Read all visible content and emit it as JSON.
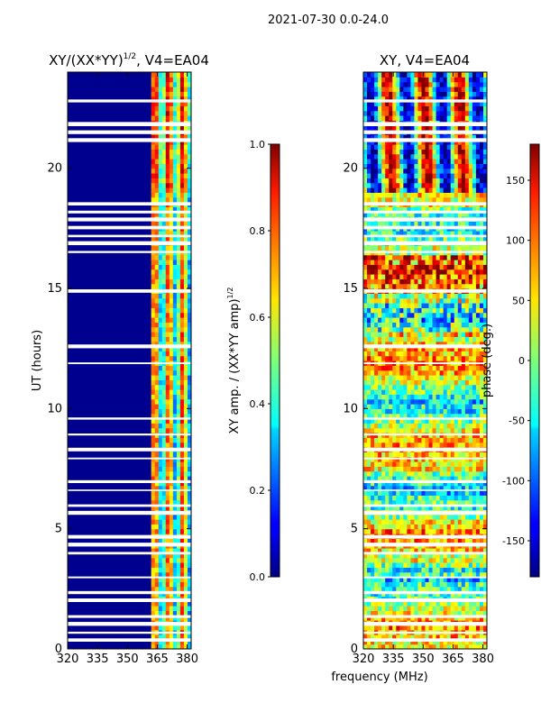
{
  "header": {
    "title": "2021-07-30 0.0-24.0"
  },
  "chart_data": [
    {
      "type": "heatmap",
      "title": "XY/(XX*YY)^1/2, V4=EA04",
      "title_main": "XY/(XX*YY)",
      "title_sup": "1/2",
      "title_tail": ", V4=EA04",
      "xlabel": "frequency (MHz)",
      "ylabel": "UT (hours)",
      "xlim": [
        320,
        382
      ],
      "ylim": [
        0,
        24
      ],
      "xticks": [
        320,
        335,
        350,
        365,
        380
      ],
      "yticks": [
        0,
        5,
        10,
        15,
        20
      ],
      "colorbar": {
        "label": "XY amp. / (XX*YY amp)^1/2",
        "label_main": "XY amp. / (XX*YY amp)",
        "label_sup": "1/2",
        "range": [
          0.0,
          1.0
        ],
        "ticks": [
          "0.0",
          "0.2",
          "0.4",
          "0.6",
          "0.8",
          "1.0"
        ],
        "colormap": "jet"
      }
    },
    {
      "type": "heatmap",
      "title": "XY, V4=EA04",
      "xlabel": "frequency (MHz)",
      "ylabel": "",
      "xlim": [
        320,
        382
      ],
      "ylim": [
        0,
        24
      ],
      "xticks": [
        320,
        335,
        350,
        365,
        380
      ],
      "yticks": [
        0,
        5,
        10,
        15,
        20
      ],
      "colorbar": {
        "label": "phase (deg.)",
        "range": [
          -180,
          180
        ],
        "ticks": [
          "-150",
          "-100",
          "-50",
          "0",
          "50",
          "100",
          "150"
        ],
        "colormap": "jet"
      }
    }
  ],
  "shared_xlabel": "frequency (MHz)"
}
